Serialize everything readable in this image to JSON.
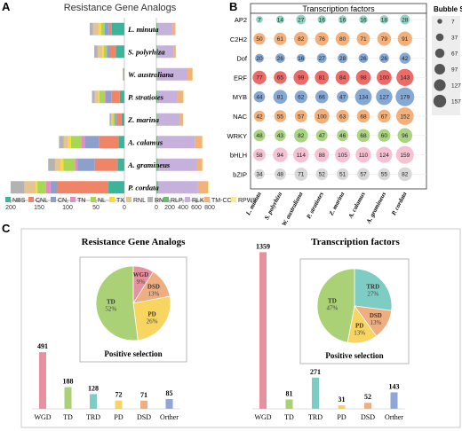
{
  "colors": {
    "NBS": "#3db39a",
    "CNL": "#ef8466",
    "CN": "#8da0cb",
    "TN": "#e78ac3",
    "NL": "#a6d854",
    "TX": "#ffd92f",
    "RNL": "#e5c494",
    "RN": "#b3b3b3",
    "RLP": "#66bf6a",
    "RLK": "#c6b0dc",
    "TM-CC": "#f3b27a",
    "RPW8": "#f4ec8f",
    "WGD": "#e8919e",
    "TD": "#aad176",
    "TRD": "#7ecdc4",
    "PD": "#f8d461",
    "DSD": "#efae80",
    "Orther": "#8fa6d6",
    "tf_red": "#ec6a68",
    "tf_blue": "#86a8d4",
    "tf_orange": "#f3b07a",
    "tf_green": "#a9d580",
    "tf_pink": "#f6c2d2",
    "tf_gray": "#d8d8d8",
    "tf_teal": "#8fd6c4"
  },
  "panelA": {
    "letter": "A",
    "title": "Resistance Gene Analogs",
    "species": [
      "L. minuta",
      "S. polyrhiza",
      "W. australiana",
      "P. stratiotes",
      "Z. marina",
      "A. calamus",
      "A. gramineus",
      "P. cordata"
    ],
    "left_axis_ticks": [
      "200",
      "150",
      "100",
      "50",
      "0"
    ],
    "right_axis_ticks": [
      "0",
      "200",
      "400",
      "600",
      "800"
    ],
    "legend": [
      "NBS",
      "CNL",
      "CN",
      "TN",
      "NL",
      "TX",
      "RNL",
      "RN",
      "RLP",
      "RLK",
      "TM-CC",
      "RPW8"
    ]
  },
  "panelB": {
    "letter": "B",
    "title": "Transcription factors",
    "bubble_size_title": "Bubble Size",
    "bubble_size_legend": [
      7,
      37,
      67,
      97,
      127,
      157
    ],
    "families": [
      "AP2",
      "C2H2",
      "Dof",
      "ERF",
      "MYB",
      "NAC",
      "WRKY",
      "bHLH",
      "bZIP"
    ],
    "family_colors": [
      "tf_teal",
      "tf_orange",
      "tf_blue",
      "tf_red",
      "tf_blue",
      "tf_orange",
      "tf_green",
      "tf_pink",
      "tf_gray"
    ]
  },
  "panelC": {
    "letter": "C",
    "left": {
      "title": "Resistance Gene Analogs",
      "pie_caption": "Positive selection",
      "pie_labels": [
        [
          "WGD",
          "9%"
        ],
        [
          "DSD",
          "13%"
        ],
        [
          "PD",
          "26%"
        ],
        [
          "TD",
          "52%"
        ]
      ]
    },
    "right": {
      "title": "Transcription factors",
      "pie_caption": "Positive selection",
      "pie_labels": [
        [
          "TRD",
          "27%"
        ],
        [
          "DSD",
          "13%"
        ],
        [
          "PD",
          "13%"
        ],
        [
          "TD",
          "47%"
        ]
      ]
    }
  },
  "chart_data": [
    {
      "type": "bar",
      "title": "Resistance Gene Analogs",
      "orientation": "horizontal",
      "categories": [
        "L. minuta",
        "S. polyrhiza",
        "W. australiana",
        "P. stratiotes",
        "Z. marina",
        "A. calamus",
        "A. gramineus",
        "P. cordata"
      ],
      "xlim_left": [
        200,
        0
      ],
      "series_left": [
        {
          "name": "NBS",
          "values": [
            22,
            15,
            1,
            8,
            5,
            10,
            12,
            28
          ]
        },
        {
          "name": "CNL",
          "values": [
            5,
            10,
            0,
            15,
            8,
            35,
            40,
            90
          ]
        },
        {
          "name": "CN",
          "values": [
            8,
            6,
            0,
            10,
            4,
            25,
            30,
            12
          ]
        },
        {
          "name": "TN",
          "values": [
            0,
            0,
            0,
            2,
            0,
            6,
            5,
            8
          ]
        },
        {
          "name": "NL",
          "values": [
            6,
            5,
            1,
            9,
            3,
            18,
            20,
            15
          ]
        },
        {
          "name": "TX",
          "values": [
            4,
            3,
            0,
            2,
            1,
            5,
            5,
            3
          ]
        },
        {
          "name": "RNL",
          "values": [
            10,
            8,
            0,
            6,
            2,
            8,
            10,
            20
          ]
        },
        {
          "name": "RN",
          "values": [
            6,
            6,
            1,
            5,
            3,
            8,
            12,
            24
          ]
        }
      ],
      "xlim_right": [
        0,
        800
      ],
      "series_right": [
        {
          "name": "RLP",
          "values": [
            15,
            12,
            10,
            14,
            12,
            18,
            20,
            25
          ]
        },
        {
          "name": "RLK",
          "values": [
            230,
            250,
            450,
            300,
            340,
            560,
            580,
            600
          ]
        },
        {
          "name": "TM-CC",
          "values": [
            40,
            30,
            80,
            90,
            50,
            110,
            90,
            150
          ]
        },
        {
          "name": "RPW8",
          "values": [
            5,
            4,
            8,
            6,
            5,
            10,
            10,
            15
          ]
        }
      ]
    },
    {
      "type": "bubble",
      "title": "Transcription factors",
      "rows": [
        "AP2",
        "C2H2",
        "Dof",
        "ERF",
        "MYB",
        "NAC",
        "WRKY",
        "bHLH",
        "bZIP"
      ],
      "columns": [
        "L. minuta",
        "S. polyrhiza",
        "W. australiana",
        "P. stratiotes",
        "Z. marina",
        "A. calamus",
        "A. gramineus",
        "P. cordata"
      ],
      "values": [
        [
          7,
          14,
          27,
          16,
          16,
          16,
          18,
          28
        ],
        [
          50,
          61,
          82,
          76,
          80,
          71,
          79,
          91
        ],
        [
          20,
          26,
          16,
          27,
          28,
          26,
          26,
          42
        ],
        [
          77,
          65,
          99,
          81,
          84,
          98,
          100,
          143
        ],
        [
          44,
          81,
          62,
          66,
          47,
          134,
          127,
          179
        ],
        [
          42,
          55,
          57,
          100,
          63,
          68,
          67,
          152
        ],
        [
          48,
          43,
          82,
          47,
          46,
          68,
          60,
          96
        ],
        [
          58,
          94,
          114,
          88,
          105,
          110,
          124,
          159
        ],
        [
          34,
          48,
          71,
          52,
          51,
          57,
          55,
          82
        ]
      ]
    },
    {
      "type": "bar",
      "title": "Resistance Gene Analogs",
      "categories": [
        "WGD",
        "TD",
        "TRD",
        "PD",
        "DSD",
        "Orther"
      ],
      "values": [
        491,
        188,
        128,
        72,
        71,
        85
      ],
      "ylim": [
        0,
        1400
      ]
    },
    {
      "type": "pie",
      "title": "Positive selection",
      "categories": [
        "WGD",
        "DSD",
        "PD",
        "TD"
      ],
      "values": [
        9,
        13,
        26,
        52
      ]
    },
    {
      "type": "bar",
      "title": "Transcription factors",
      "categories": [
        "WGD",
        "TD",
        "TRD",
        "PD",
        "DSD",
        "Orther"
      ],
      "values": [
        1359,
        81,
        271,
        31,
        52,
        143
      ],
      "ylim": [
        0,
        1400
      ]
    },
    {
      "type": "pie",
      "title": "Positive selection",
      "categories": [
        "TRD",
        "DSD",
        "PD",
        "TD"
      ],
      "values": [
        27,
        13,
        13,
        47
      ]
    }
  ]
}
